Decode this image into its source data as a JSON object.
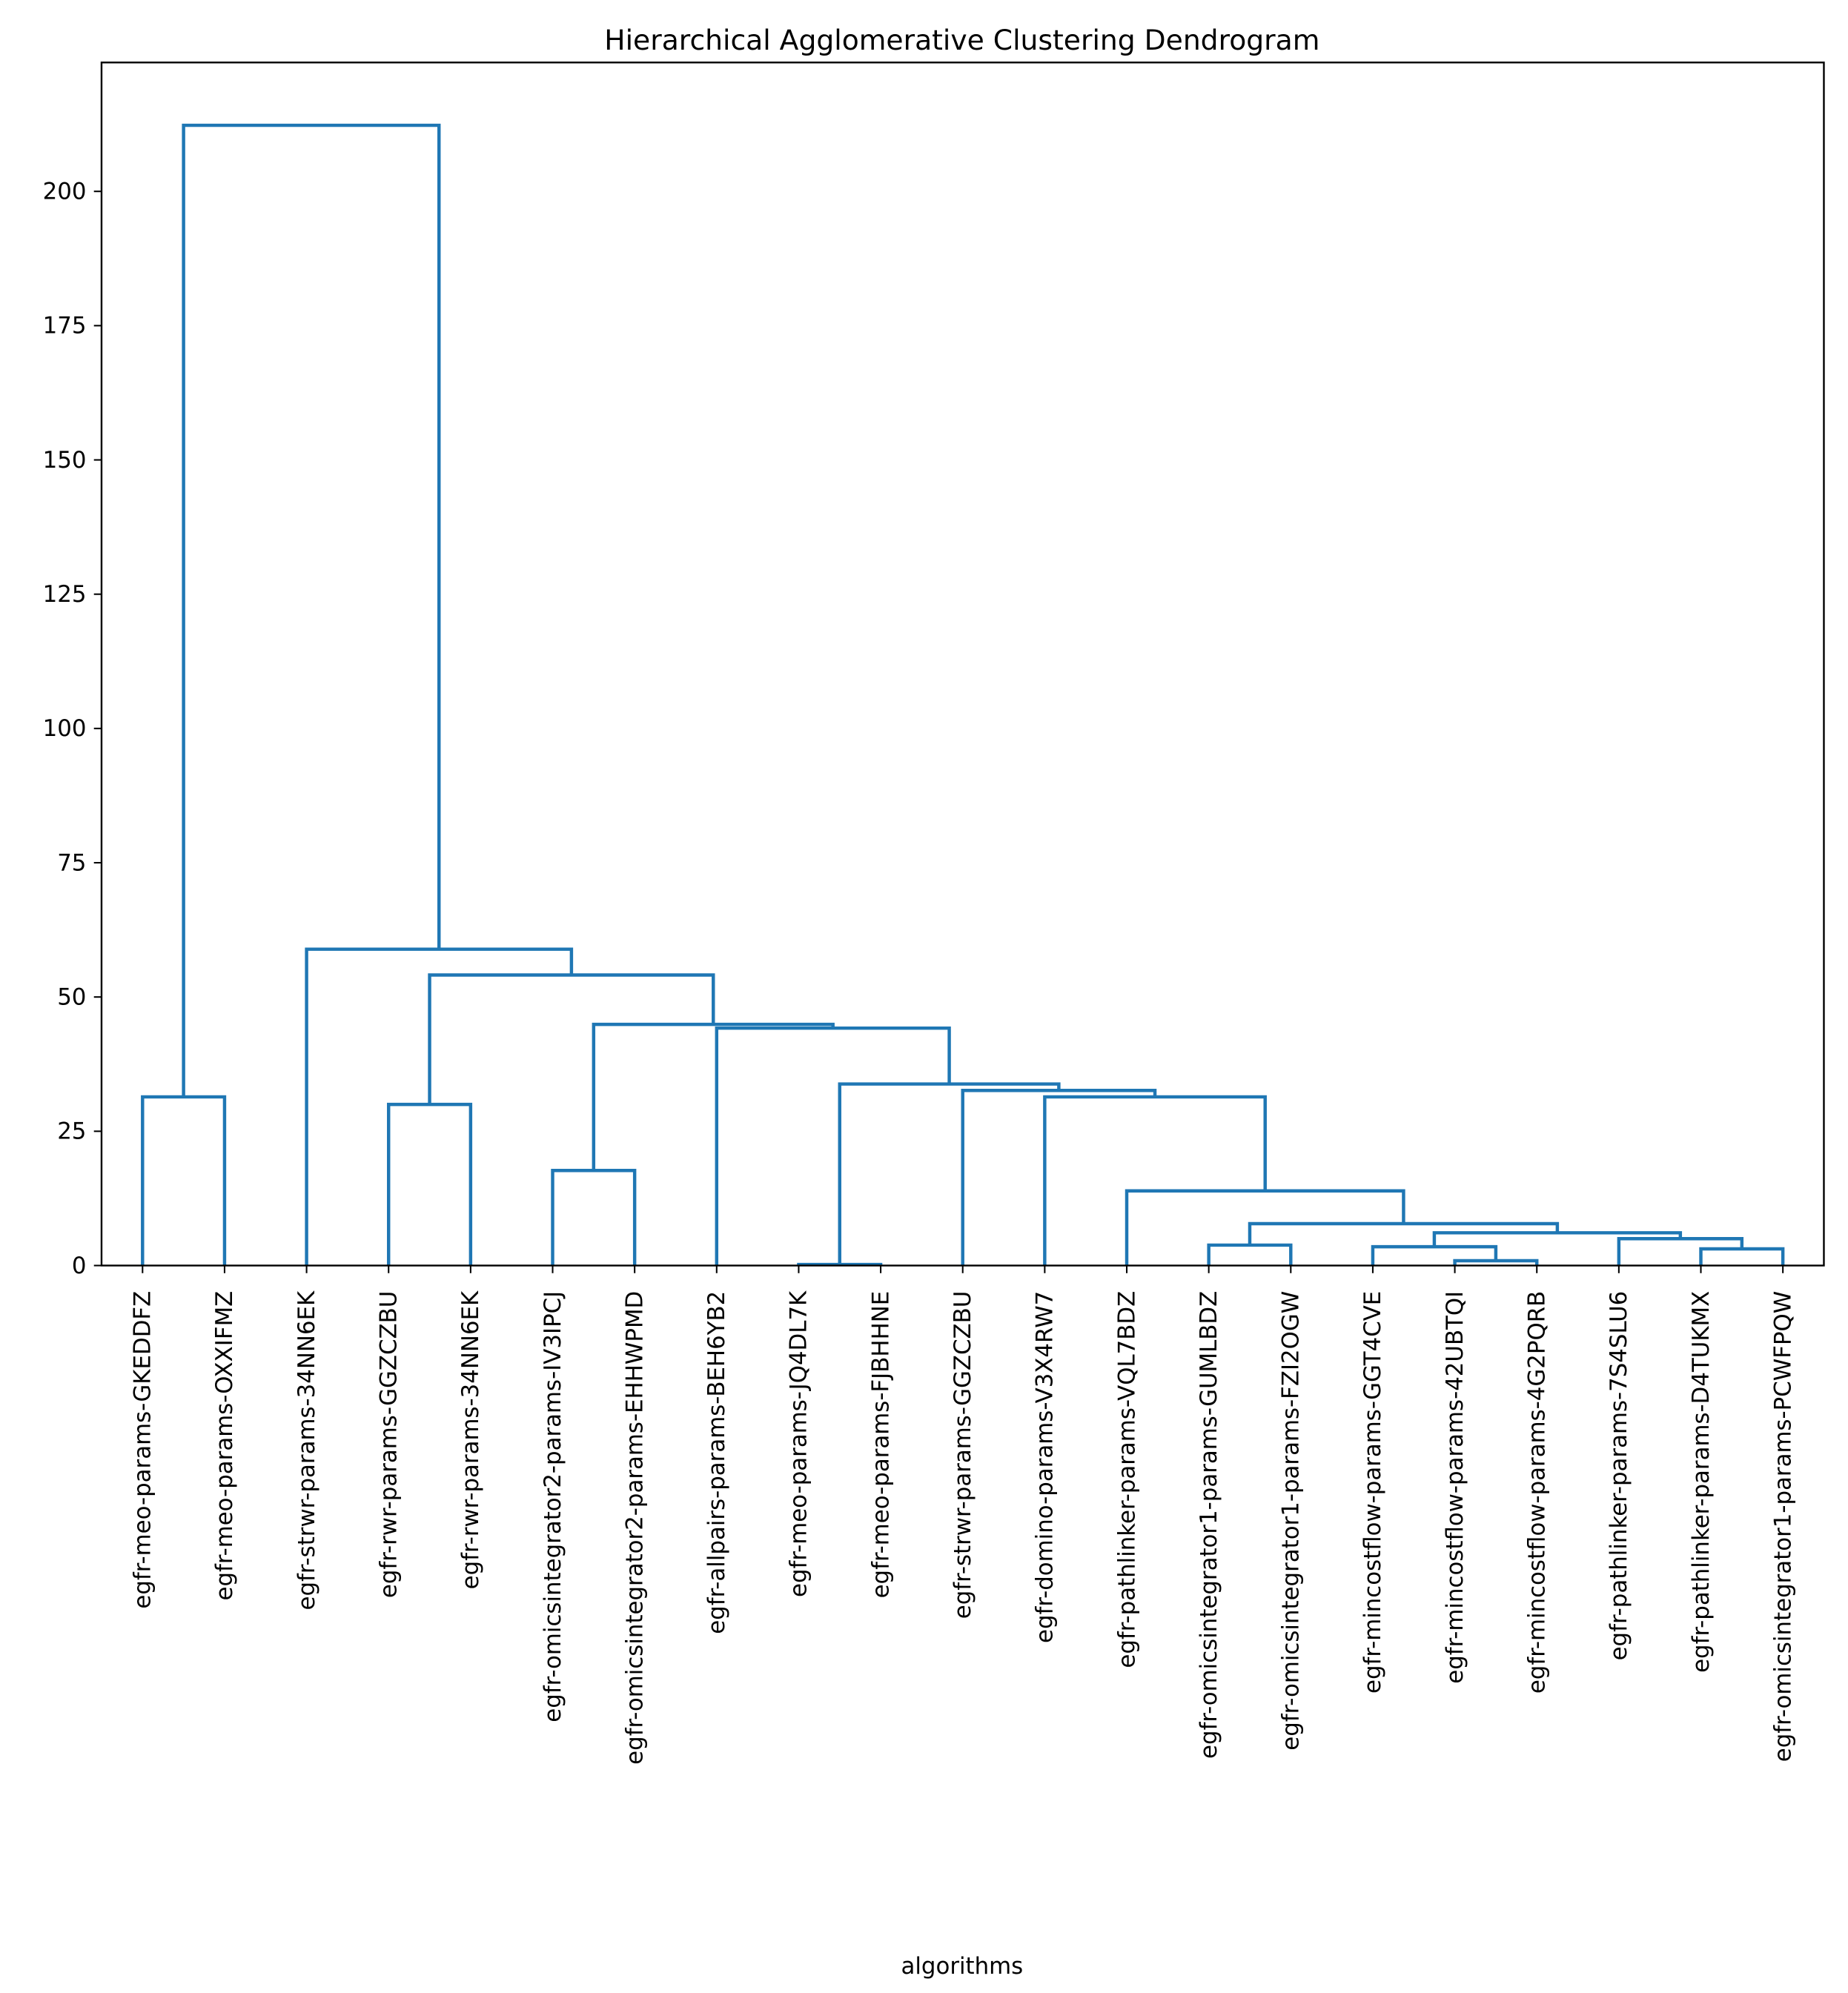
{
  "chart_data": {
    "type": "dendrogram",
    "title": "Hierarchical Agglomerative Clustering Dendrogram",
    "xlabel": "algorithms",
    "ylabel": "",
    "ylim": [
      0,
      224
    ],
    "yticks": [
      0,
      25,
      50,
      75,
      100,
      125,
      150,
      175,
      200
    ],
    "grid": false,
    "line_color": "#1f77b4",
    "leaves": [
      "egfr-meo-params-GKEDDFZ",
      "egfr-meo-params-OXXIFMZ",
      "egfr-strwr-params-34NN6EK",
      "egfr-rwr-params-GGZCZBU",
      "egfr-rwr-params-34NN6EK",
      "egfr-omicsintegrator2-params-IV3IPCJ",
      "egfr-omicsintegrator2-params-EHHWPMD",
      "egfr-allpairs-params-BEH6YB2",
      "egfr-meo-params-JQ4DL7K",
      "egfr-meo-params-FJBHHNE",
      "egfr-strwr-params-GGZCZBU",
      "egfr-domino-params-V3X4RW7",
      "egfr-pathlinker-params-VQL7BDZ",
      "egfr-omicsintegrator1-params-GUMLBDZ",
      "egfr-omicsintegrator1-params-FZI2OGW",
      "egfr-mincostflow-params-GGT4CVE",
      "egfr-mincostflow-params-42UBTQI",
      "egfr-mincostflow-params-4G2PQRB",
      "egfr-pathlinker-params-7S4SLU6",
      "egfr-pathlinker-params-D4TUKMX",
      "egfr-omicsintegrator1-params-PCWFPQW"
    ],
    "merges": [
      [
        8,
        9,
        0.2
      ],
      [
        16,
        17,
        0.9
      ],
      [
        19,
        20,
        3.1
      ],
      [
        15,
        22,
        3.5
      ],
      [
        13,
        14,
        3.8
      ],
      [
        18,
        23,
        5.0
      ],
      [
        24,
        26,
        6.1
      ],
      [
        25,
        27,
        7.8
      ],
      [
        12,
        28,
        13.9
      ],
      [
        5,
        6,
        17.7
      ],
      [
        3,
        4,
        30.0
      ],
      [
        11,
        29,
        31.4
      ],
      [
        0,
        1,
        31.4
      ],
      [
        10,
        32,
        32.6
      ],
      [
        21,
        34,
        33.8
      ],
      [
        7,
        35,
        44.2
      ],
      [
        30,
        36,
        44.9
      ],
      [
        31,
        37,
        54.1
      ],
      [
        2,
        38,
        58.9
      ],
      [
        33,
        39,
        212.3
      ]
    ]
  }
}
